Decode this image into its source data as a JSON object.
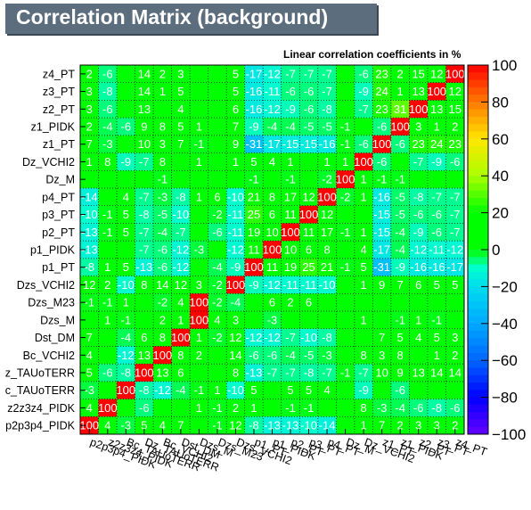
{
  "title": "Correlation Matrix (background)",
  "chart_data": {
    "type": "heatmap",
    "title": "Correlation Matrix (background)",
    "subtitle": "Linear correlation coefficients in %",
    "zlim": [
      -100,
      100
    ],
    "colorbar_ticks": [
      "100",
      "80",
      "60",
      "40",
      "20",
      "0",
      "−20",
      "−40",
      "−60",
      "−80",
      "−100"
    ],
    "x_labels": [
      "p2p3p4_PIDK",
      "z2z3z4_PIDK",
      "Bc_TAUoTERR",
      "Dz_TAUoTERR",
      "Bc_VCHI2",
      "Dst_DM",
      "Dzs_M",
      "Dzs_M23",
      "Dzs_VCHI2",
      "p1_PT",
      "p1_PIDK",
      "p2_PT",
      "p3_PT",
      "p4_PT",
      "Dz_M",
      "Dz_VCHI2",
      "z1_PT",
      "z1_PIDK",
      "z2_PT",
      "z3_PT",
      "z4_PT"
    ],
    "y_labels_top_to_bottom": [
      "z4_PT",
      "z3_PT",
      "z2_PT",
      "z1_PIDK",
      "z1_PT",
      "Dz_VCHI2",
      "Dz_M",
      "p4_PT",
      "p3_PT",
      "p2_PT",
      "p1_PIDK",
      "p1_PT",
      "Dzs_VCHI2",
      "Dzs_M23",
      "Dzs_M",
      "Dst_DM",
      "Bc_VCHI2",
      "Dz_TAUoTERR",
      "Bc_TAUoTERR",
      "z2z3z4_PIDK",
      "p2p3p4_PIDK"
    ],
    "y_labels_display_top_to_bottom": [
      "z4_PT",
      "z3_PT",
      "z2_PT",
      "z1_PIDK",
      "z1_PT",
      "Dz_VCHI2",
      "Dz_M",
      "p4_PT",
      "p3_PT",
      "p2_PT",
      "p1_PIDK",
      "p1_PT",
      "Dzs_VCHI2",
      "Dzs_M23",
      "Dzs_M",
      "Dst_DM",
      "Bc_VCHI2",
      "z_TAUoTERR",
      "c_TAUoTERR",
      "z2z3z4_PIDK",
      "p2p3p4_PIDK"
    ],
    "values_top_to_bottom": [
      [
        2,
        -6,
        0,
        14,
        2,
        3,
        0,
        0,
        5,
        -17,
        -12,
        -7,
        -7,
        -7,
        0,
        -6,
        23,
        2,
        15,
        12,
        100
      ],
      [
        3,
        -8,
        0,
        14,
        1,
        5,
        0,
        0,
        5,
        -16,
        -11,
        -6,
        -6,
        -7,
        0,
        -9,
        24,
        1,
        13,
        100,
        12
      ],
      [
        3,
        -6,
        0,
        13,
        0,
        4,
        0,
        0,
        6,
        -16,
        -12,
        -9,
        -6,
        -8,
        0,
        -7,
        23,
        31,
        100,
        13,
        15
      ],
      [
        2,
        -4,
        -6,
        9,
        8,
        5,
        1,
        0,
        7,
        -9,
        -4,
        -4,
        -5,
        -5,
        -1,
        0,
        -6,
        100,
        3,
        1,
        2
      ],
      [
        7,
        -3,
        0,
        10,
        3,
        7,
        -1,
        0,
        9,
        -31,
        -17,
        -15,
        -15,
        -16,
        -1,
        -6,
        100,
        -6,
        23,
        24,
        23
      ],
      [
        1,
        8,
        -9,
        -7,
        8,
        0,
        1,
        0,
        1,
        5,
        4,
        1,
        0,
        1,
        1,
        100,
        -6,
        0,
        -7,
        -9,
        -6
      ],
      [
        0,
        0,
        0,
        0,
        -1,
        0,
        0,
        0,
        0,
        -1,
        0,
        -1,
        0,
        -2,
        100,
        1,
        -1,
        -1,
        0,
        0,
        0
      ],
      [
        -14,
        0,
        4,
        -7,
        -3,
        -8,
        1,
        6,
        -10,
        21,
        8,
        17,
        12,
        100,
        -2,
        1,
        -16,
        -5,
        -8,
        -7,
        -7
      ],
      [
        -10,
        -1,
        5,
        -8,
        -5,
        -10,
        0,
        -2,
        -11,
        25,
        6,
        11,
        100,
        12,
        0,
        0,
        -15,
        -5,
        -6,
        -6,
        -7
      ],
      [
        -13,
        -1,
        5,
        -7,
        -4,
        -7,
        0,
        -6,
        -11,
        19,
        10,
        100,
        11,
        17,
        -1,
        1,
        -15,
        -4,
        -9,
        -6,
        -7
      ],
      [
        -13,
        0,
        0,
        -7,
        -6,
        -12,
        -3,
        0,
        -12,
        11,
        100,
        10,
        6,
        8,
        0,
        4,
        -17,
        -4,
        -12,
        -11,
        -12
      ],
      [
        -8,
        1,
        5,
        -13,
        -6,
        -12,
        0,
        -4,
        -9,
        100,
        11,
        19,
        25,
        21,
        -1,
        5,
        -31,
        -9,
        -16,
        -16,
        -17
      ],
      [
        12,
        2,
        -10,
        8,
        14,
        12,
        3,
        -2,
        100,
        -9,
        -12,
        -11,
        -11,
        -10,
        0,
        1,
        9,
        7,
        6,
        5,
        5
      ],
      [
        -1,
        -1,
        1,
        0,
        -2,
        4,
        100,
        -2,
        -4,
        0,
        6,
        2,
        6,
        0,
        0,
        0,
        0,
        0,
        0,
        0,
        0
      ],
      [
        0,
        1,
        -1,
        0,
        2,
        1,
        100,
        4,
        3,
        0,
        -3,
        0,
        0,
        0,
        0,
        1,
        0,
        -1,
        1,
        -1,
        0
      ],
      [
        7,
        0,
        -4,
        6,
        8,
        100,
        1,
        -2,
        12,
        -12,
        -12,
        -7,
        -10,
        -8,
        0,
        0,
        7,
        5,
        4,
        5,
        3
      ],
      [
        4,
        0,
        -12,
        13,
        100,
        8,
        2,
        0,
        14,
        -6,
        -6,
        -4,
        -5,
        -3,
        0,
        8,
        3,
        8,
        0,
        1,
        2
      ],
      [
        5,
        -6,
        -8,
        100,
        13,
        6,
        0,
        0,
        8,
        -13,
        -7,
        -7,
        -8,
        -7,
        -1,
        -7,
        10,
        9,
        13,
        14,
        14
      ],
      [
        -3,
        0,
        100,
        -8,
        -12,
        -4,
        -1,
        1,
        -10,
        5,
        0,
        5,
        5,
        4,
        0,
        -9,
        0,
        -6,
        0,
        0,
        0
      ],
      [
        4,
        100,
        0,
        -6,
        0,
        0,
        1,
        -1,
        2,
        1,
        0,
        -1,
        -1,
        0,
        0,
        8,
        -3,
        -4,
        -6,
        -8,
        -6
      ],
      [
        100,
        4,
        -3,
        5,
        4,
        7,
        0,
        -1,
        12,
        -8,
        -13,
        -13,
        -10,
        -14,
        0,
        1,
        7,
        2,
        3,
        3,
        2
      ]
    ],
    "grid": true
  }
}
